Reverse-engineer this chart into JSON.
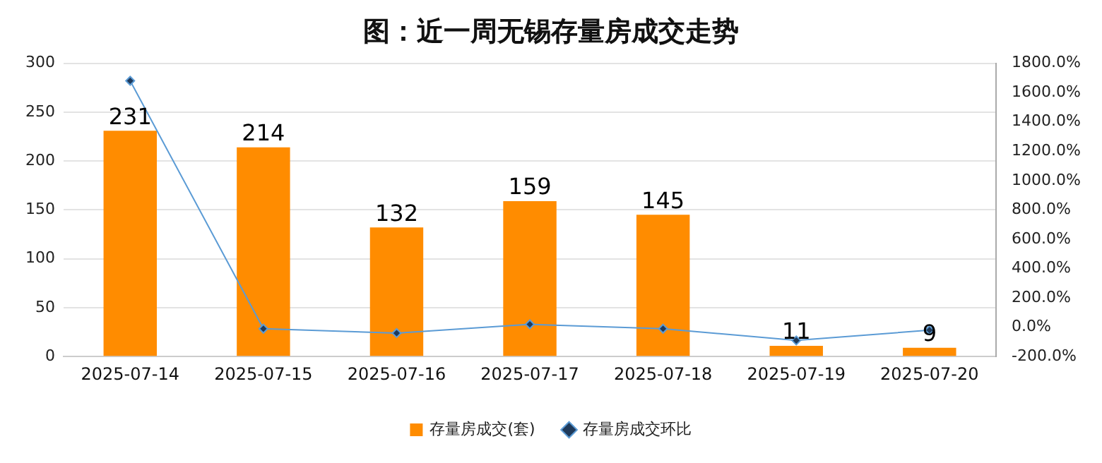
{
  "chart_data": {
    "type": "bar",
    "title": "图：近一周无锡存量房成交走势",
    "categories": [
      "2025-07-14",
      "2025-07-15",
      "2025-07-16",
      "2025-07-17",
      "2025-07-18",
      "2025-07-19",
      "2025-07-20"
    ],
    "series": [
      {
        "name": "存量房成交(套)",
        "color": "#ff8c00",
        "values": [
          231,
          214,
          132,
          159,
          145,
          11,
          9
        ],
        "value_labels": [
          "231",
          "214",
          "132",
          "159",
          "145",
          "11",
          "9"
        ]
      },
      {
        "name": "存量房成交环比",
        "type": "line",
        "axis": "y2",
        "color": "#5b9bd5",
        "marker": "diamond",
        "values": [
          1680,
          -10,
          -40,
          20,
          -10,
          -90,
          -20
        ]
      }
    ],
    "ylim": [
      0,
      300
    ],
    "yticks": [
      0,
      50,
      100,
      150,
      200,
      250,
      300
    ],
    "y2lim": [
      -200,
      1800
    ],
    "y2ticks": [
      {
        "value": -200,
        "label": "-200.0%"
      },
      {
        "value": 0,
        "label": "0.0%"
      },
      {
        "value": 200,
        "label": "200.0%"
      },
      {
        "value": 400,
        "label": "400.0%"
      },
      {
        "value": 600,
        "label": "600.0%"
      },
      {
        "value": 800,
        "label": "800.0%"
      },
      {
        "value": 1000,
        "label": "1000.0%"
      },
      {
        "value": 1200,
        "label": "1200.0%"
      },
      {
        "value": 1400,
        "label": "1400.0%"
      },
      {
        "value": 1600,
        "label": "1600.0%"
      },
      {
        "value": 1800,
        "label": "1800.0%"
      }
    ],
    "grid": "y",
    "legend": "bottom"
  }
}
